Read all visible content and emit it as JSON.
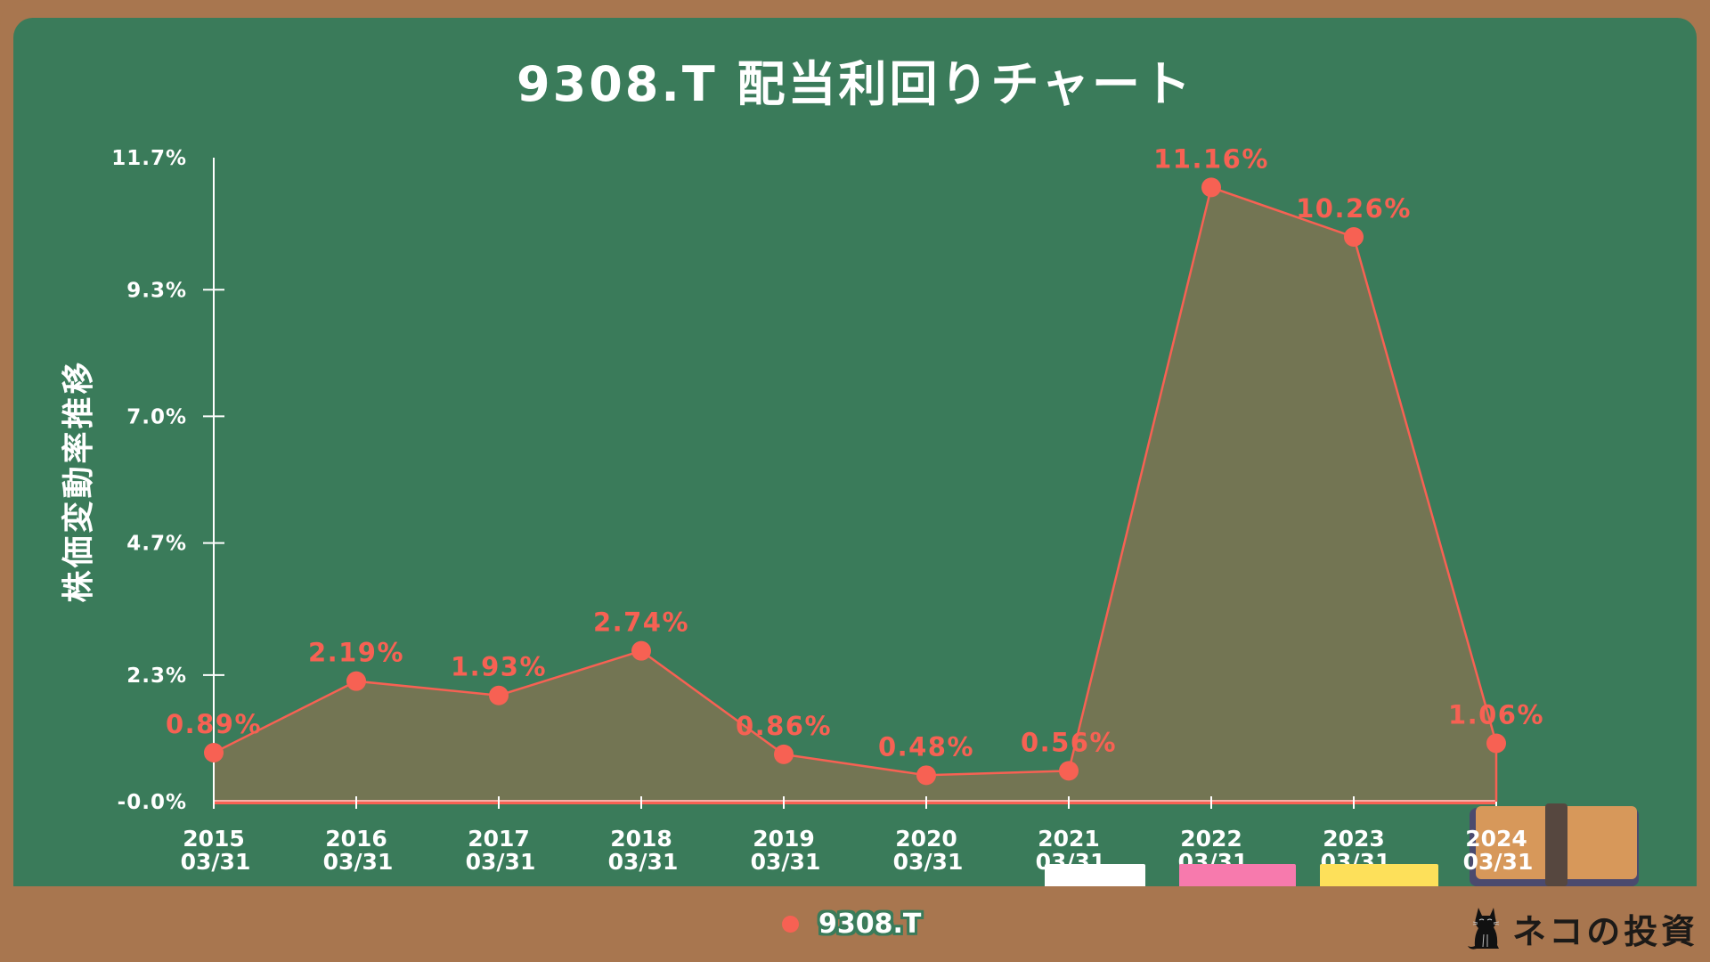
{
  "header": {
    "title": "9308.T 配当利回りチャート"
  },
  "axes": {
    "y_title": "株価変動率推移"
  },
  "legend": {
    "series_label": "9308.T",
    "marker_color": "#f76153"
  },
  "branding": {
    "logo_text": "ネコの投資",
    "logo_icon": "black-cat-icon"
  },
  "colors": {
    "board": "#3a7b5a",
    "frame": "#a8764f",
    "line": "#f76153",
    "fill": "#737553",
    "axis": "#ffffff",
    "chalk_white": "#ffffff",
    "chalk_pink": "#f77aad",
    "chalk_yellow": "#fde05a"
  },
  "chart_data": {
    "type": "area",
    "title": "9308.T 配当利回りチャート",
    "xlabel": "",
    "ylabel": "株価変動率推移",
    "categories": [
      "2015\n03/31",
      "2016\n03/31",
      "2017\n03/31",
      "2018\n03/31",
      "2019\n03/31",
      "2020\n03/31",
      "2021\n03/31",
      "2022\n03/31",
      "2023\n03/31",
      "2024\n03/31"
    ],
    "x_years": [
      "2015",
      "2016",
      "2017",
      "2018",
      "2019",
      "2020",
      "2021",
      "2022",
      "2023",
      "2024"
    ],
    "x_dates": [
      "03/31",
      "03/31",
      "03/31",
      "03/31",
      "03/31",
      "03/31",
      "03/31",
      "03/31",
      "03/31",
      "03/31"
    ],
    "series": [
      {
        "name": "9308.T",
        "values": [
          0.89,
          2.19,
          1.93,
          2.74,
          0.86,
          0.48,
          0.56,
          11.16,
          10.26,
          1.06
        ],
        "labels": [
          "0.89%",
          "2.19%",
          "1.93%",
          "2.74%",
          "0.86%",
          "0.48%",
          "0.56%",
          "11.16%",
          "10.26%",
          "1.06%"
        ]
      }
    ],
    "yticks": [
      0.0,
      2.3,
      4.7,
      7.0,
      9.3,
      11.7
    ],
    "ytick_labels": [
      "-0.0%",
      "2.3%",
      "4.7%",
      "7.0%",
      "9.3%",
      "11.7%"
    ],
    "ylim": [
      0,
      11.7
    ],
    "grid": false,
    "legend_position": "bottom"
  }
}
